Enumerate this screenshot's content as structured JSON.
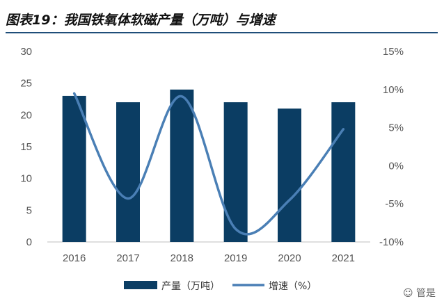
{
  "header": {
    "title": "图表19：我国铁氧体软磁产量（万吨）与增速"
  },
  "chart_data": {
    "type": "bar",
    "categories": [
      "2016",
      "2017",
      "2018",
      "2019",
      "2020",
      "2021"
    ],
    "series": [
      {
        "name": "产量（万吨）",
        "type": "bar",
        "axis": "left",
        "color": "#0b3d63",
        "values": [
          23,
          22,
          24,
          22,
          21,
          22
        ]
      },
      {
        "name": "增速（%）",
        "type": "line",
        "smooth": true,
        "axis": "right",
        "color": "#4a7fb5",
        "values": [
          9.5,
          -4.3,
          9.1,
          -8.3,
          -4.5,
          4.8
        ]
      }
    ],
    "left_axis": {
      "ylim": [
        0,
        30
      ],
      "ticks": [
        "0",
        "5",
        "10",
        "15",
        "20",
        "25",
        "30"
      ],
      "tick_values": [
        0,
        5,
        10,
        15,
        20,
        25,
        30
      ]
    },
    "right_axis": {
      "ylim": [
        -10,
        15
      ],
      "ticks": [
        "-10%",
        "-5%",
        "0%",
        "5%",
        "10%",
        "15%"
      ],
      "tick_values": [
        -10,
        -5,
        0,
        5,
        10,
        15
      ]
    },
    "legend": {
      "position": "bottom"
    },
    "grid": false
  },
  "watermark": {
    "text": "管是"
  }
}
